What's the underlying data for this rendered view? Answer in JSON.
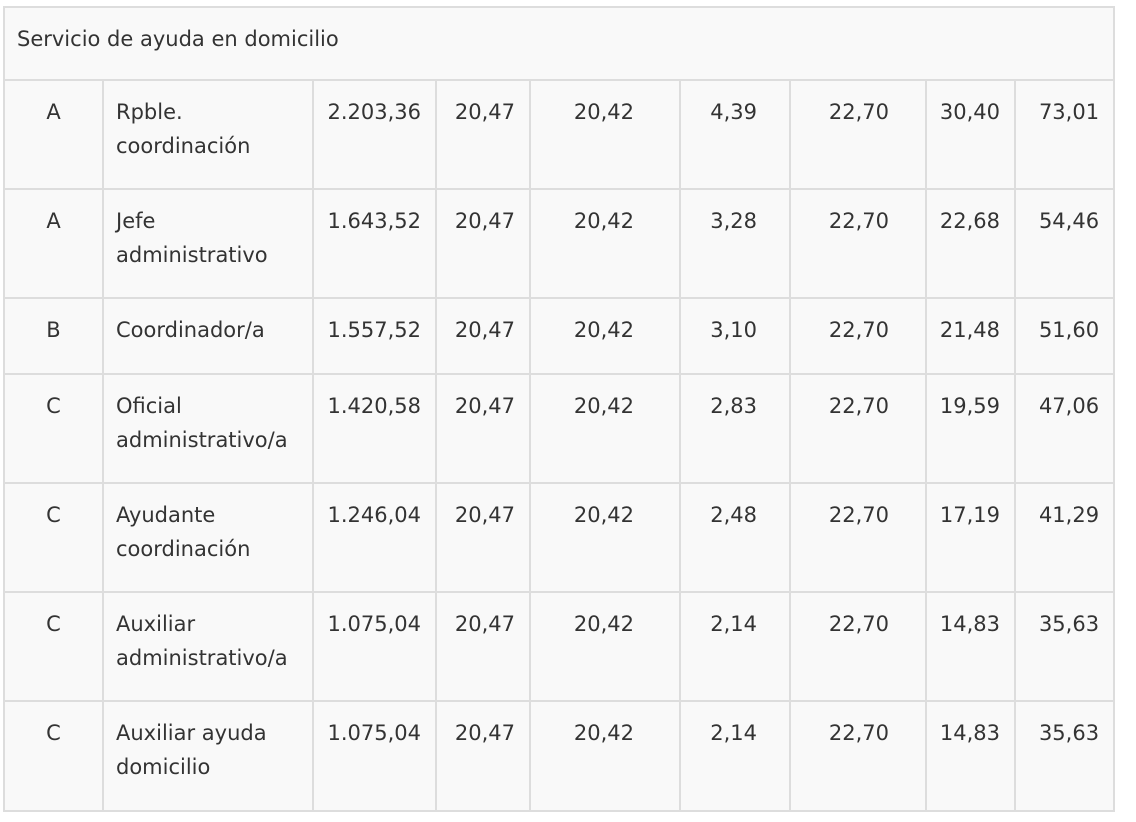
{
  "section_title": "Servicio de ayuda en domicilio",
  "rows": [
    {
      "group": "A",
      "category": "Rpble. coordinación",
      "values": [
        "2.203,36",
        "20,47",
        "20,42",
        "4,39",
        "22,70",
        "30,40",
        "73,01"
      ]
    },
    {
      "group": "A",
      "category": "Jefe administrativo",
      "values": [
        "1.643,52",
        "20,47",
        "20,42",
        "3,28",
        "22,70",
        "22,68",
        "54,46"
      ]
    },
    {
      "group": "B",
      "category": "Coordinador/a",
      "values": [
        "1.557,52",
        "20,47",
        "20,42",
        "3,10",
        "22,70",
        "21,48",
        "51,60"
      ]
    },
    {
      "group": "C",
      "category": "Oficial administrativo/a",
      "values": [
        "1.420,58",
        "20,47",
        "20,42",
        "2,83",
        "22,70",
        "19,59",
        "47,06"
      ]
    },
    {
      "group": "C",
      "category": "Ayudante coordinación",
      "values": [
        "1.246,04",
        "20,47",
        "20,42",
        "2,48",
        "22,70",
        "17,19",
        "41,29"
      ]
    },
    {
      "group": "C",
      "category": "Auxiliar administrativo/a",
      "values": [
        "1.075,04",
        "20,47",
        "20,42",
        "2,14",
        "22,70",
        "14,83",
        "35,63"
      ]
    },
    {
      "group": "C",
      "category": "Auxiliar ayuda domicilio",
      "values": [
        "1.075,04",
        "20,47",
        "20,42",
        "2,14",
        "22,70",
        "14,83",
        "35,63"
      ]
    }
  ]
}
